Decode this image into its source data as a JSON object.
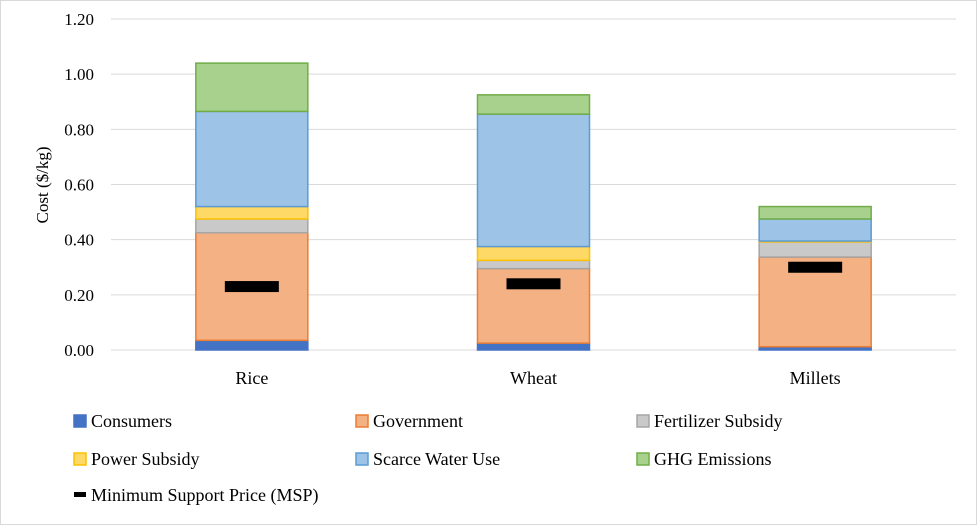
{
  "chart_data": {
    "type": "bar",
    "stacked": true,
    "title": "",
    "xlabel": "",
    "ylabel": "Cost ($/kg)",
    "ylim": [
      0,
      1.2
    ],
    "yticks": [
      "0.00",
      "0.20",
      "0.40",
      "0.60",
      "0.80",
      "1.00",
      "1.20"
    ],
    "grid": true,
    "legend_position": "bottom",
    "categories": [
      "Rice",
      "Wheat",
      "Millets"
    ],
    "series": [
      {
        "name": "Consumers",
        "values": [
          0.035,
          0.025,
          0.012
        ],
        "fill": "#4472c4",
        "stroke": "#4472c4"
      },
      {
        "name": "Government",
        "values": [
          0.39,
          0.27,
          0.325
        ],
        "fill": "#f4b183",
        "stroke": "#ed7d31"
      },
      {
        "name": "Fertilizer Subsidy",
        "values": [
          0.05,
          0.03,
          0.055
        ],
        "fill": "#c9c9c9",
        "stroke": "#a5a5a5"
      },
      {
        "name": "Power Subsidy",
        "values": [
          0.045,
          0.05,
          0.003
        ],
        "fill": "#ffd966",
        "stroke": "#ffc000"
      },
      {
        "name": "Scarce Water Use",
        "values": [
          0.345,
          0.48,
          0.08
        ],
        "fill": "#9dc3e6",
        "stroke": "#5b9bd5"
      },
      {
        "name": "GHG Emissions",
        "values": [
          0.175,
          0.07,
          0.045
        ],
        "fill": "#a9d18e",
        "stroke": "#70ad47"
      }
    ],
    "markers": {
      "name": "Minimum Support Price (MSP)",
      "values": [
        0.23,
        0.24,
        0.3
      ],
      "color": "#000000"
    }
  }
}
